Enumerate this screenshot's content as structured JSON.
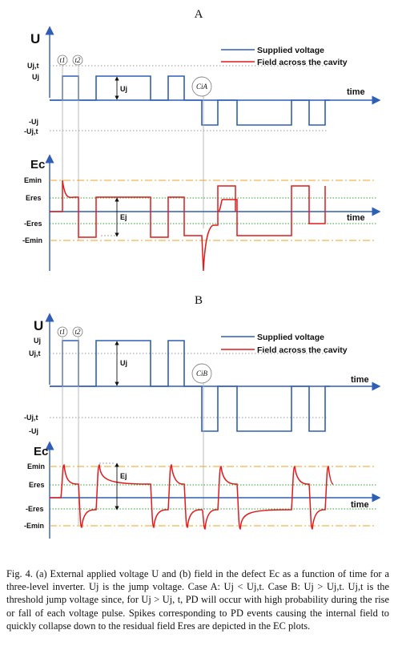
{
  "panels": [
    {
      "title": "A",
      "u_axis": "U",
      "u_ticks": [
        "Uj,t",
        "Uj",
        "-Uj",
        "-Uj,t"
      ],
      "uj_marker": "Uj",
      "t_markers": [
        "t1",
        "t2"
      ],
      "cavity_label": "CiA",
      "time_label": "time",
      "ec_axis": "Ec",
      "ec_ticks": [
        "Emin",
        "Eres",
        "-Eres",
        "-Emin"
      ],
      "ej_marker": "Ej",
      "legend": [
        "Supplied voltage",
        "Field across the cavity"
      ]
    },
    {
      "title": "B",
      "u_axis": "U",
      "u_ticks": [
        "Uj",
        "Uj,t",
        "-Uj,t",
        "-Uj"
      ],
      "uj_marker": "Uj",
      "t_markers": [
        "t1",
        "t2"
      ],
      "cavity_label": "CiB",
      "time_label": "time",
      "ec_axis": "Ec",
      "ec_ticks": [
        "Emin",
        "Eres",
        "-Eres",
        "-Emin"
      ],
      "ej_marker": "Ej",
      "legend": [
        "Supplied voltage",
        "Field across the cavity"
      ]
    }
  ],
  "colors": {
    "voltage": "#2f5fb5",
    "field": "#e41a1c",
    "threshold": "#f0a020",
    "residual": "#2ca02c",
    "grey": "#9a9a9a"
  },
  "caption": {
    "fig": "Fig. 4.",
    "body": "(a) External applied voltage U and (b) field in the defect Ec as a function of time for a three-level inverter. Uj is the jump voltage. Case A: Uj < Uj,t. Case B: Uj > Uj,t. Uj,t is the threshold jump voltage since, for Uj > Uj, t, PD will occur with high probability during the rise or fall of each voltage pulse. Spikes corresponding to PD events causing the internal field to quickly collapse down to the residual field Eres are depicted in the EC plots."
  }
}
